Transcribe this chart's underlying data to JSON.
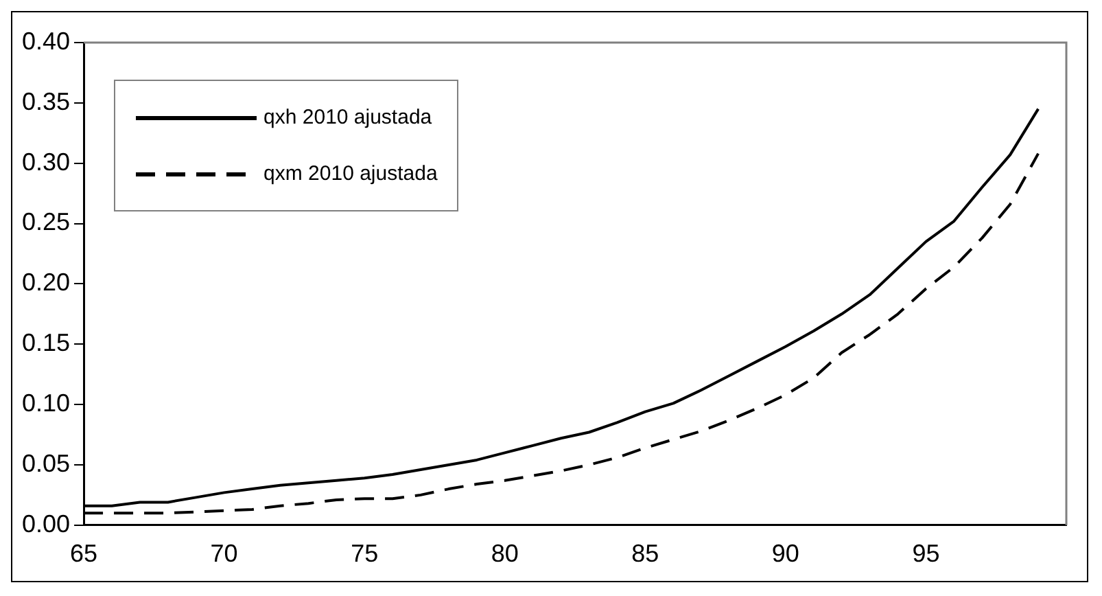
{
  "chart_data": {
    "type": "line",
    "x": [
      65,
      66,
      67,
      68,
      69,
      70,
      71,
      72,
      73,
      74,
      75,
      76,
      77,
      78,
      79,
      80,
      81,
      82,
      83,
      84,
      85,
      86,
      87,
      88,
      89,
      90,
      91,
      92,
      93,
      94,
      95,
      96,
      97,
      98,
      99
    ],
    "series": [
      {
        "name": "qxh 2010 ajustada",
        "color": "#000000",
        "line_style": "solid",
        "values": [
          0.016,
          0.016,
          0.019,
          0.019,
          0.023,
          0.027,
          0.03,
          0.033,
          0.035,
          0.037,
          0.039,
          0.042,
          0.046,
          0.05,
          0.054,
          0.06,
          0.066,
          0.072,
          0.077,
          0.085,
          0.094,
          0.101,
          0.112,
          0.124,
          0.136,
          0.148,
          0.161,
          0.175,
          0.191,
          0.213,
          0.235,
          0.252,
          0.28,
          0.307,
          0.345
        ]
      },
      {
        "name": "qxm 2010 ajustada",
        "color": "#000000",
        "line_style": "dashed",
        "values": [
          0.01,
          0.01,
          0.01,
          0.01,
          0.011,
          0.012,
          0.013,
          0.016,
          0.018,
          0.021,
          0.022,
          0.022,
          0.025,
          0.03,
          0.034,
          0.037,
          0.041,
          0.045,
          0.05,
          0.056,
          0.064,
          0.071,
          0.078,
          0.087,
          0.097,
          0.108,
          0.122,
          0.143,
          0.158,
          0.175,
          0.196,
          0.214,
          0.238,
          0.266,
          0.308
        ]
      }
    ],
    "xlim": [
      65,
      100
    ],
    "xticks": [
      65,
      70,
      75,
      80,
      85,
      90,
      95
    ],
    "ylim": [
      0,
      0.4
    ],
    "yticks": [
      {
        "value": 0,
        "label": "0.00"
      },
      {
        "value": 0.05,
        "label": "0.05"
      },
      {
        "value": 0.1,
        "label": "0.10"
      },
      {
        "value": 0.15,
        "label": "0.15"
      },
      {
        "value": 0.2,
        "label": "0.20"
      },
      {
        "value": 0.25,
        "label": "0.25"
      },
      {
        "value": 0.3,
        "label": "0.30"
      },
      {
        "value": 0.35,
        "label": "0.35"
      },
      {
        "value": 0.4,
        "label": "0.40"
      }
    ],
    "grid": false,
    "legend": "top left",
    "marker": "none"
  }
}
